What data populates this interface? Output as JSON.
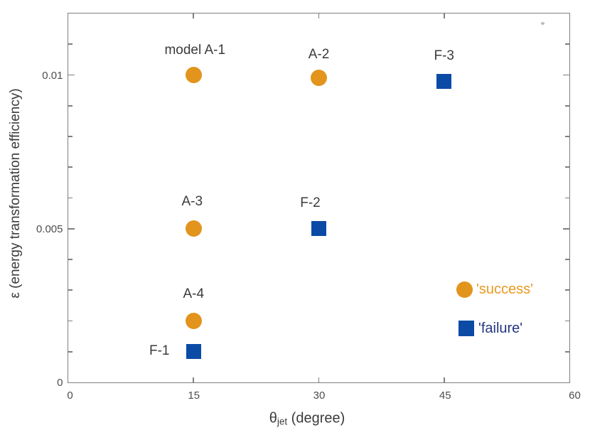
{
  "chart_data": {
    "type": "scatter",
    "xlabel": {
      "symbol": "θ",
      "subscript": "jet",
      "rest": " (degree)"
    },
    "ylabel": "ε (energy transformation efficiency)",
    "xlim": [
      0,
      60
    ],
    "ylim": [
      0,
      0.012
    ],
    "x_major_ticks": [
      0,
      15,
      30,
      45,
      60
    ],
    "x_tick_labels": [
      "0",
      "15",
      "30",
      "45",
      "60"
    ],
    "x_tick_label_dx": [
      2,
      0,
      0,
      1,
      7
    ],
    "y_major_ticks": [
      0,
      0.005,
      0.01
    ],
    "y_tick_labels": [
      "0",
      "0.005",
      "0.01"
    ],
    "y_minor_tick_step": 0.001,
    "grid": false,
    "legend_position": "lower-right",
    "axis_color": "#7f7f7f",
    "tick_label_color": "#4d4d4d",
    "series": [
      {
        "name": "'success'",
        "marker": "circle",
        "color": "#E2941C",
        "points": [
          {
            "label": "model A-1",
            "x": 15,
            "y": 0.01,
            "label_dx": 2,
            "label_dy": -35
          },
          {
            "label": "A-2",
            "x": 30,
            "y": 0.0099,
            "label_dx": 0,
            "label_dy": -33
          },
          {
            "label": "A-3",
            "x": 15,
            "y": 0.005,
            "label_dx": -2,
            "label_dy": -38
          },
          {
            "label": "A-4",
            "x": 15,
            "y": 0.002,
            "label_dx": 0,
            "label_dy": -38
          }
        ]
      },
      {
        "name": "'failure'",
        "marker": "square",
        "color": "#0B4BA6",
        "points": [
          {
            "label": "F-3",
            "x": 45,
            "y": 0.0098,
            "label_dx": 0,
            "label_dy": -35
          },
          {
            "label": "F-2",
            "x": 30,
            "y": 0.005,
            "label_dx": -12,
            "label_dy": -36
          },
          {
            "label": "F-1",
            "x": 15,
            "y": 0.001,
            "label_dx": -48,
            "label_dy": -1
          }
        ]
      }
    ],
    "legend": {
      "entries": [
        {
          "label": "'success'",
          "marker": "circle",
          "color": "#E2941C",
          "text_color": "#E8991F",
          "mx": 557,
          "my": 388
        },
        {
          "label": "'failure'",
          "marker": "square",
          "color": "#0B4BA6",
          "text_color": "#233580",
          "mx": 560,
          "my": 443
        }
      ]
    }
  }
}
